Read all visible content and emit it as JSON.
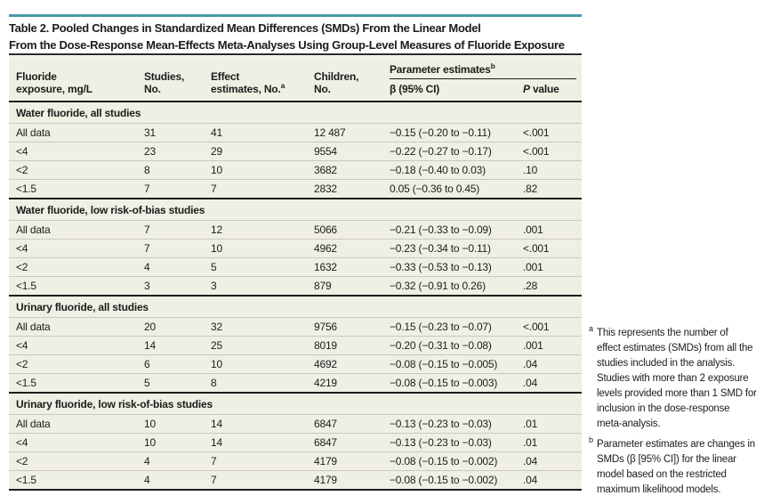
{
  "title": {
    "line1": "Table 2. Pooled Changes in Standardized Mean Differences (SMDs) From the Linear Model",
    "line2": "From the Dose-Response Mean-Effects Meta-Analyses Using Group-Level Measures of Fluoride Exposure"
  },
  "colors": {
    "accent_teal": "#4a98a8",
    "table_background": "#f0efe4",
    "rule_dark": "#1d1d1b",
    "row_separator": "#cbc9bc",
    "text": "#1c1c1c"
  },
  "table": {
    "columns": [
      {
        "label": "Fluoride\nexposure, mg/L"
      },
      {
        "label": "Studies,\nNo."
      },
      {
        "label": "Effect\nestimates, No.",
        "sup": "a"
      },
      {
        "label": "Children,\nNo."
      },
      {
        "label": "β (95% CI)"
      },
      {
        "italic": "P",
        "rest": " value"
      }
    ],
    "spanner": {
      "label": "Parameter estimates",
      "sup": "b"
    },
    "sections": [
      {
        "label": "Water fluoride, all studies",
        "rows": [
          [
            "All data",
            "31",
            "41",
            "12 487",
            "−0.15 (−0.20 to −0.11)",
            "<.001"
          ],
          [
            "<4",
            "23",
            "29",
            "9554",
            "−0.22 (−0.27 to −0.17)",
            "<.001"
          ],
          [
            "<2",
            "8",
            "10",
            "3682",
            "−0.18 (−0.40 to 0.03)",
            ".10"
          ],
          [
            "<1.5",
            "7",
            "7",
            "2832",
            "0.05 (−0.36 to 0.45)",
            ".82"
          ]
        ]
      },
      {
        "label": "Water fluoride, low risk-of-bias studies",
        "rows": [
          [
            "All data",
            "7",
            "12",
            "5066",
            "−0.21 (−0.33 to −0.09)",
            ".001"
          ],
          [
            "<4",
            "7",
            "10",
            "4962",
            "−0.23 (−0.34 to −0.11)",
            "<.001"
          ],
          [
            "<2",
            "4",
            "5",
            "1632",
            "−0.33 (−0.53 to −0.13)",
            ".001"
          ],
          [
            "<1.5",
            "3",
            "3",
            "879",
            "−0.32 (−0.91 to 0.26)",
            ".28"
          ]
        ]
      },
      {
        "label": "Urinary fluoride, all studies",
        "rows": [
          [
            "All data",
            "20",
            "32",
            "9756",
            "−0.15 (−0.23 to −0.07)",
            "<.001"
          ],
          [
            "<4",
            "14",
            "25",
            "8019",
            "−0.20 (−0.31 to −0.08)",
            ".001"
          ],
          [
            "<2",
            "6",
            "10",
            "4692",
            "−0.08 (−0.15 to −0.005)",
            ".04"
          ],
          [
            "<1.5",
            "5",
            "8",
            "4219",
            "−0.08 (−0.15 to −0.003)",
            ".04"
          ]
        ]
      },
      {
        "label": "Urinary fluoride, low risk-of-bias studies",
        "rows": [
          [
            "All data",
            "10",
            "14",
            "6847",
            "−0.13 (−0.23 to −0.03)",
            ".01"
          ],
          [
            "<4",
            "10",
            "14",
            "6847",
            "−0.13 (−0.23 to −0.03)",
            ".01"
          ],
          [
            "<2",
            "4",
            "7",
            "4179",
            "−0.08 (−0.15 to −0.002)",
            ".04"
          ],
          [
            "<1.5",
            "4",
            "7",
            "4179",
            "−0.08 (−0.15 to −0.002)",
            ".04"
          ]
        ]
      }
    ]
  },
  "footnotes": [
    {
      "marker": "a",
      "text": "This represents the number of\neffect estimates (SMDs) from all the\nstudies included in the analysis.\nStudies with more than 2 exposure\nlevels provided more than 1 SMD for\ninclusion in the dose-response\nmeta-analysis."
    },
    {
      "marker": "b",
      "text": "Parameter estimates are changes in\nSMDs (β [95% CI]) for the linear\nmodel based on the restricted\nmaximum likelihood models."
    }
  ]
}
